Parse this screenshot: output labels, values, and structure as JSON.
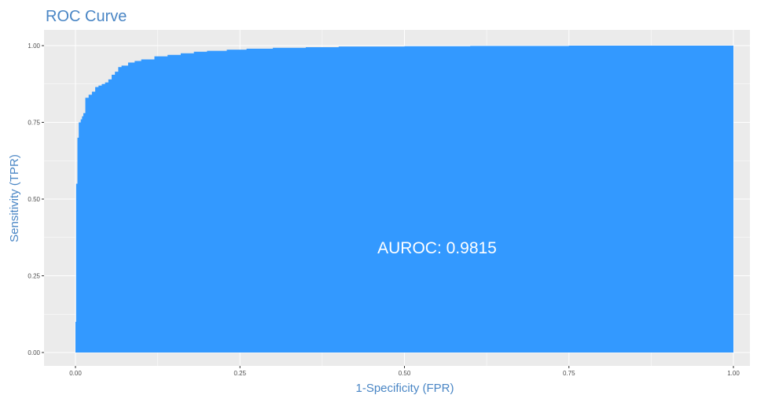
{
  "chart_data": {
    "type": "area",
    "title": "ROC Curve",
    "xlabel": "1-Specificity (FPR)",
    "ylabel": "Sensitivity (TPR)",
    "xlim": [
      0,
      1
    ],
    "ylim": [
      0,
      1
    ],
    "x_ticks": [
      "0.00",
      "0.25",
      "0.50",
      "0.75",
      "1.00"
    ],
    "y_ticks": [
      "0.00",
      "0.25",
      "0.50",
      "0.75",
      "1.00"
    ],
    "grid": true,
    "annotation": "AUROC: 0.9815",
    "series": [
      {
        "x": [
          0.0,
          0.0,
          0.001,
          0.001,
          0.003,
          0.003,
          0.005,
          0.005,
          0.008,
          0.01,
          0.012,
          0.015,
          0.015,
          0.02,
          0.025,
          0.03,
          0.035,
          0.04,
          0.045,
          0.05,
          0.055,
          0.06,
          0.065,
          0.07,
          0.08,
          0.09,
          0.1,
          0.12,
          0.14,
          0.16,
          0.18,
          0.2,
          0.23,
          0.26,
          0.3,
          0.35,
          0.4,
          0.5,
          0.6,
          0.75,
          0.85,
          1.0
        ],
        "y": [
          0.0,
          0.1,
          0.33,
          0.55,
          0.62,
          0.7,
          0.73,
          0.75,
          0.76,
          0.77,
          0.78,
          0.8,
          0.83,
          0.84,
          0.85,
          0.865,
          0.87,
          0.875,
          0.88,
          0.89,
          0.905,
          0.915,
          0.93,
          0.935,
          0.945,
          0.95,
          0.955,
          0.965,
          0.97,
          0.975,
          0.98,
          0.983,
          0.987,
          0.99,
          0.993,
          0.995,
          0.997,
          0.998,
          0.999,
          1.0,
          1.0,
          1.0
        ]
      }
    ],
    "colors": {
      "fill": "#3399ff",
      "panel": "#ebebeb",
      "grid": "#ffffff",
      "title": "#4a86c5"
    }
  }
}
